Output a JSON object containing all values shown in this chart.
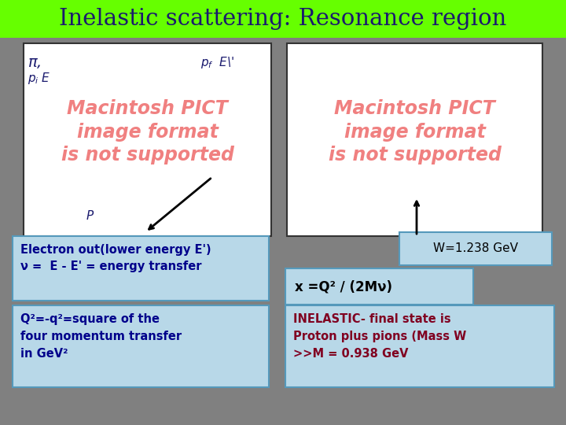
{
  "title": "Inelastic scattering: Resonance region",
  "title_bg": "#66ff00",
  "title_color": "#1a1a6e",
  "bg_color": "#808080",
  "placeholder_color": "#f08080",
  "box1_text": "Electron out(lower energy E')\nν =  E - E' = energy transfer",
  "box1_color": "#b8d8e8",
  "box1_text_color": "#00008B",
  "box2_text": "W=1.238 GeV",
  "box2_color": "#b8d8e8",
  "box2_text_color": "#000000",
  "box3_text": "x =Q² / (2Mν)",
  "box3_color": "#b8d8e8",
  "box3_text_color": "#000000",
  "box4_text": "Q²=-q²=square of the\nfour momentum transfer\nin GeV²",
  "box4_color": "#b8d8e8",
  "box4_text_color": "#00008B",
  "box5_text": "INELASTIC- final state is\nProton plus pions (Mass W\n>>M = 0.938 GeV",
  "box5_color": "#b8d8e8",
  "box5_text_color": "#800020"
}
